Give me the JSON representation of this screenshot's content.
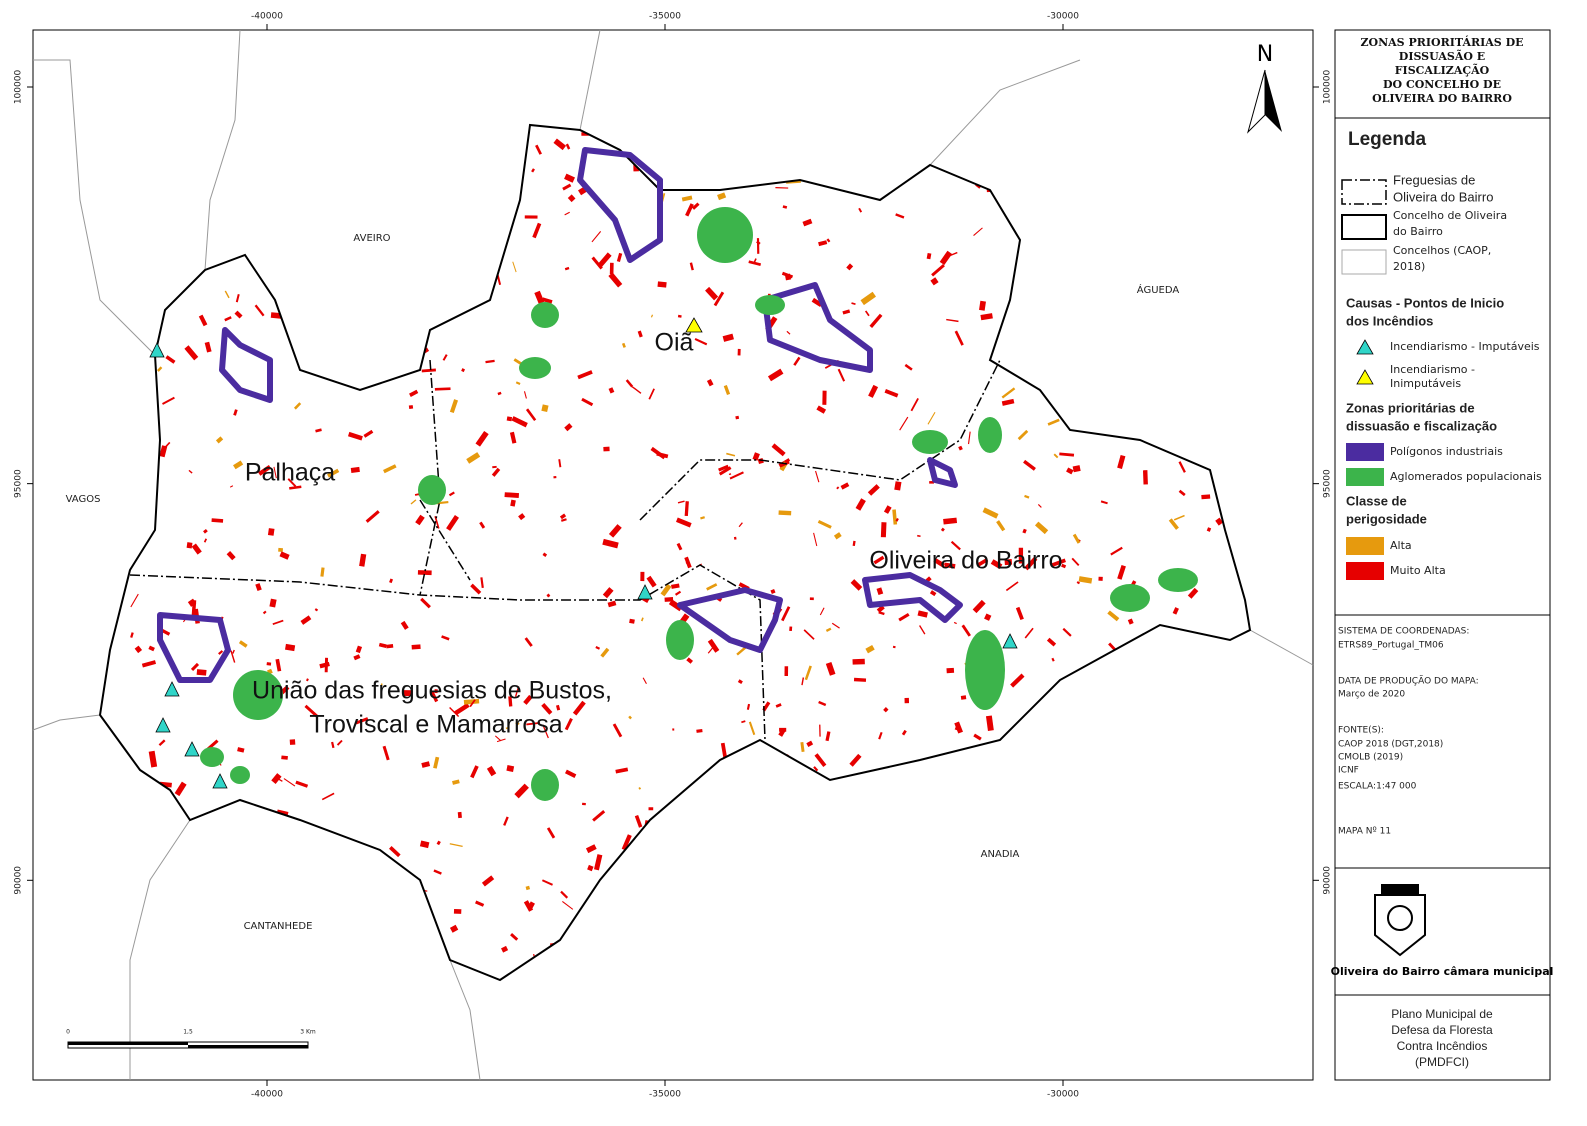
{
  "map": {
    "grid_x": [
      -40000,
      -35000,
      -30000
    ],
    "grid_y": [
      100000,
      95000,
      90000
    ],
    "neighbors": {
      "aveiro": "AVEIRO",
      "agueda": "ÁGUEDA",
      "vagos": "VAGOS",
      "cantanhede": "CANTANHEDE",
      "anadia": "ANADIA"
    },
    "parishes": {
      "oia": "Oiã",
      "palhaca": "Palhaça",
      "oliveira": "Oliveira do Bairro",
      "uniao": [
        "União das freguesias de Bustos,",
        "Troviscal e Mamarrosa"
      ]
    },
    "north": "N",
    "scale_bar": [
      "0",
      "1,5",
      "3 Km"
    ]
  },
  "panel": {
    "title": [
      "ZONAS PRIORITÁRIAS DE",
      "DISSUASÃO E",
      "FISCALIZAÇÃO",
      "DO CONCELHO DE",
      "OLIVEIRA DO BAIRRO"
    ],
    "legend_title": "Legenda",
    "boundaries": [
      [
        "Freguesias de",
        "Oliveira do Bairro"
      ],
      [
        "Concelho de Oliveira",
        "do Bairro"
      ],
      [
        "Concelhos (CAOP,",
        "2018)"
      ]
    ],
    "causes_title": [
      "Causas - Pontos de Inicio",
      "dos Incêndios"
    ],
    "causes": [
      [
        "Incendiarismo - Imputáveis"
      ],
      [
        "Incendiarismo -",
        "Inimputáveis"
      ]
    ],
    "zones_title": [
      "Zonas prioritárias de",
      "dissuasão e fiscalização"
    ],
    "zones": [
      "Polígonos industriais",
      "Aglomerados populacionais"
    ],
    "hazard_title": [
      "Classe de",
      "perigosidade"
    ],
    "hazard": [
      "Alta",
      "Muito Alta"
    ],
    "info": {
      "crs_label": "SISTEMA DE COORDENADAS:",
      "crs": "ETRS89_Portugal_TM06",
      "date_label": "DATA DE PRODUÇÃO DO MAPA:",
      "date": "Março de 2020",
      "sources_label": "FONTE(S):",
      "sources": [
        "CAOP 2018 (DGT,2018)",
        "CMOLB (2019)",
        "ICNF"
      ],
      "scale": "ESCALA:1:47 000",
      "map_no": "MAPA Nº 11"
    },
    "logo": "Oliveira do Bairro câmara municipal",
    "footer": [
      "Plano Municipal de",
      "Defesa da Floresta",
      "Contra Incêndios",
      "(PMDFCI)"
    ]
  }
}
